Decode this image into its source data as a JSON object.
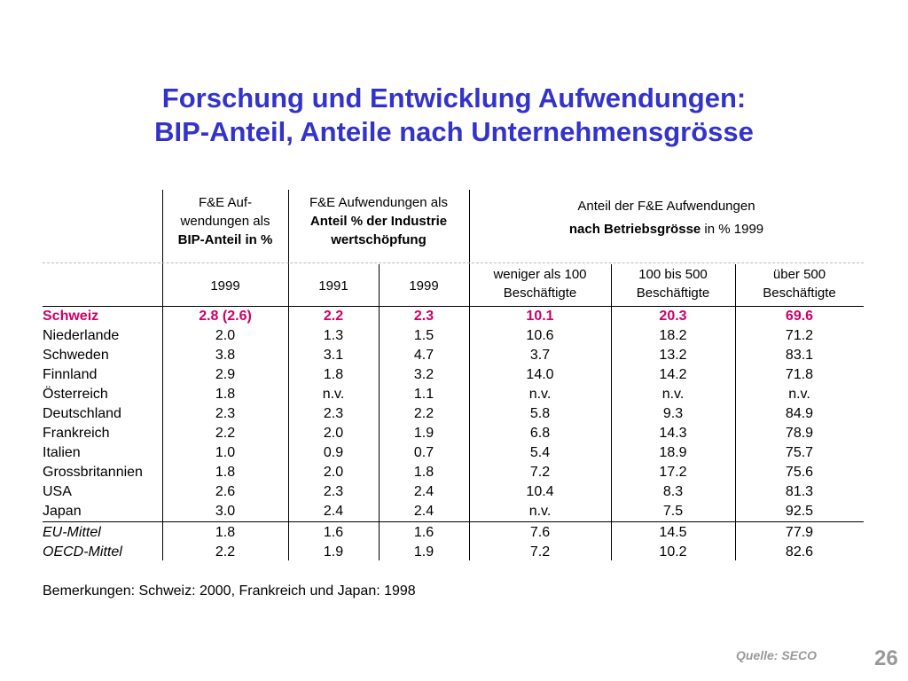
{
  "title": {
    "line1": "Forschung und Entwicklung Aufwendungen:",
    "line2": "BIP-Anteil, Anteile nach Unternehmensgrösse"
  },
  "header": {
    "group1": {
      "line1": "F&E Auf-",
      "line2": "wendungen als",
      "line3": "BIP-Anteil in %"
    },
    "group2": {
      "line1": "F&E Aufwendungen als",
      "line2": "Anteil % der Industrie",
      "line3": "wertschöpfung"
    },
    "group3": {
      "line1": "Anteil der F&E Aufwendungen",
      "line2_bold": "nach Betriebsgrösse",
      "line2_rest": " in % 1999"
    },
    "sub": {
      "c1": "1999",
      "c2": "1991",
      "c3": "1999",
      "c4_l1": "weniger als 100",
      "c4_l2": "Beschäftigte",
      "c5_l1": "100 bis 500",
      "c5_l2": "Beschäftigte",
      "c6_l1": "über 500",
      "c6_l2": "Beschäftigte"
    }
  },
  "rows": [
    {
      "country": "Schweiz",
      "bip": "2.8 (2.6)",
      "ind1991": "2.2",
      "ind1999": "2.3",
      "lt100": "10.1",
      "b100_500": "20.3",
      "gt500": "69.6"
    },
    {
      "country": "Niederlande",
      "bip": "2.0",
      "ind1991": "1.3",
      "ind1999": "1.5",
      "lt100": "10.6",
      "b100_500": "18.2",
      "gt500": "71.2"
    },
    {
      "country": "Schweden",
      "bip": "3.8",
      "ind1991": "3.1",
      "ind1999": "4.7",
      "lt100": "3.7",
      "b100_500": "13.2",
      "gt500": "83.1"
    },
    {
      "country": "Finnland",
      "bip": "2.9",
      "ind1991": "1.8",
      "ind1999": "3.2",
      "lt100": "14.0",
      "b100_500": "14.2",
      "gt500": "71.8"
    },
    {
      "country": "Österreich",
      "bip": "1.8",
      "ind1991": "n.v.",
      "ind1999": "1.1",
      "lt100": "n.v.",
      "b100_500": "n.v.",
      "gt500": "n.v."
    },
    {
      "country": "Deutschland",
      "bip": "2.3",
      "ind1991": "2.3",
      "ind1999": "2.2",
      "lt100": "5.8",
      "b100_500": "9.3",
      "gt500": "84.9"
    },
    {
      "country": "Frankreich",
      "bip": "2.2",
      "ind1991": "2.0",
      "ind1999": "1.9",
      "lt100": "6.8",
      "b100_500": "14.3",
      "gt500": "78.9"
    },
    {
      "country": "Italien",
      "bip": "1.0",
      "ind1991": "0.9",
      "ind1999": "0.7",
      "lt100": "5.4",
      "b100_500": "18.9",
      "gt500": "75.7"
    },
    {
      "country": "Grossbritannien",
      "bip": "1.8",
      "ind1991": "2.0",
      "ind1999": "1.8",
      "lt100": "7.2",
      "b100_500": "17.2",
      "gt500": "75.6"
    },
    {
      "country": "USA",
      "bip": "2.6",
      "ind1991": "2.3",
      "ind1999": "2.4",
      "lt100": "10.4",
      "b100_500": "8.3",
      "gt500": "81.3"
    },
    {
      "country": "Japan",
      "bip": "3.0",
      "ind1991": "2.4",
      "ind1999": "2.4",
      "lt100": "n.v.",
      "b100_500": "7.5",
      "gt500": "92.5"
    },
    {
      "country": "EU-Mittel",
      "bip": "1.8",
      "ind1991": "1.6",
      "ind1999": "1.6",
      "lt100": "7.6",
      "b100_500": "14.5",
      "gt500": "77.9"
    },
    {
      "country": "OECD-Mittel",
      "bip": "2.2",
      "ind1991": "1.9",
      "ind1999": "1.9",
      "lt100": "7.2",
      "b100_500": "10.2",
      "gt500": "82.6"
    }
  ],
  "note": "Bemerkungen: Schweiz: 2000, Frankreich und Japan: 1998",
  "source": "Quelle: SECO",
  "page_number": "26",
  "colors": {
    "title": "#3333cc",
    "highlight": "#cc0066",
    "footer": "#999999"
  }
}
